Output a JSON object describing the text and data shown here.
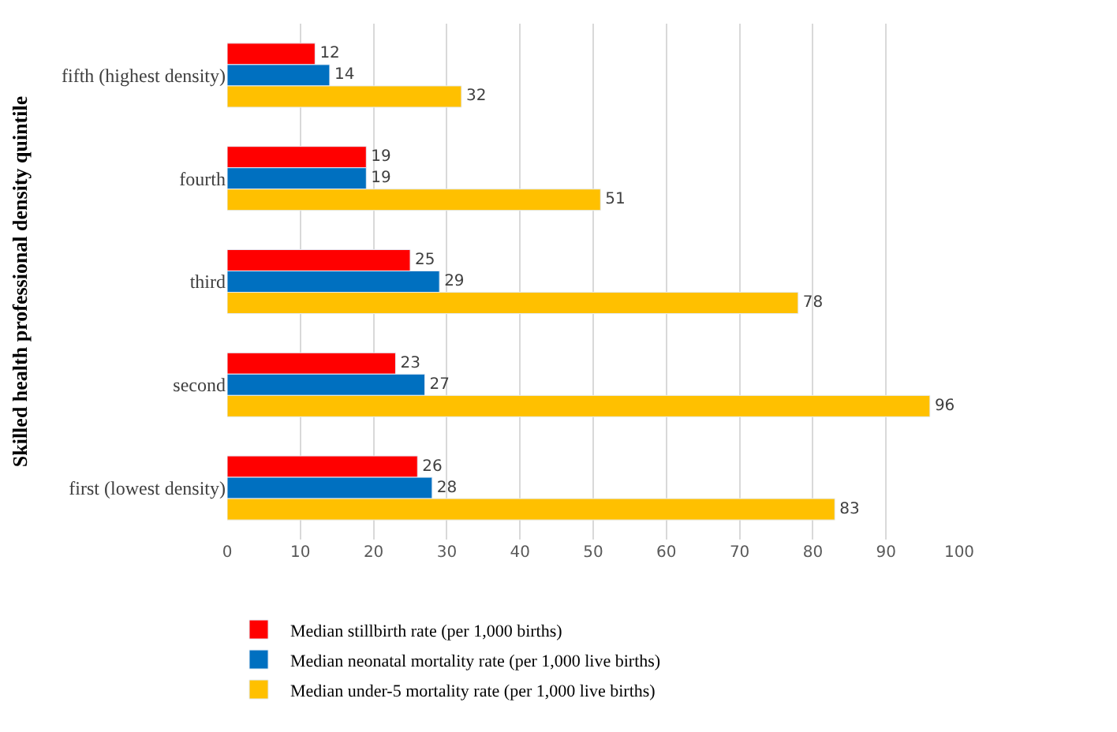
{
  "chart_data": {
    "type": "bar",
    "orientation": "horizontal",
    "ylabel": "Skilled health professional density quintile",
    "categories": [
      "fifth (highest density)",
      "fourth",
      "third",
      "second",
      "first (lowest density)"
    ],
    "series": [
      {
        "name": "Median stillbirth rate (per 1,000 births)",
        "color": "#ff0000",
        "values": [
          12,
          19,
          25,
          23,
          26
        ]
      },
      {
        "name": "Median neonatal mortality rate (per 1,000 live births)",
        "color": "#0070c0",
        "values": [
          14,
          19,
          29,
          27,
          28
        ]
      },
      {
        "name": "Median under-5 mortality rate (per 1,000 live births)",
        "color": "#ffc000",
        "values": [
          32,
          51,
          78,
          96,
          83
        ]
      }
    ],
    "xlim": [
      0,
      100
    ],
    "xticks": [
      0,
      10,
      20,
      30,
      40,
      50,
      60,
      70,
      80,
      90,
      100
    ],
    "grid": "x",
    "legend": "bottom",
    "data_labels": true
  }
}
